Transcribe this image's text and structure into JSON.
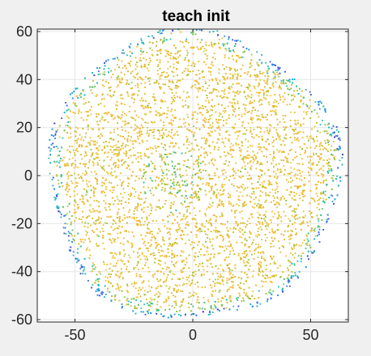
{
  "chart_data": {
    "type": "scatter",
    "title": "teach init",
    "xlabel": "",
    "ylabel": "",
    "xlim": [
      -66,
      66
    ],
    "ylim": [
      -61,
      61
    ],
    "xticks": [
      -50,
      0,
      50
    ],
    "yticks": [
      -60,
      -40,
      -20,
      0,
      20,
      40,
      60
    ],
    "xtick_labels": [
      "-50",
      "0",
      "50"
    ],
    "ytick_labels": [
      "-60",
      "-40",
      "-20",
      "0",
      "20",
      "40",
      "60"
    ],
    "grid": true,
    "legend": "none",
    "colormap": "parula",
    "point_cloud": {
      "shape": "disc",
      "center": [
        0,
        0
      ],
      "radius": 62,
      "approx_point_count": 9000,
      "dominant_color": "#e3b93a",
      "edge_colors": [
        "#3e26a8",
        "#2f7ff5",
        "#1caadf",
        "#2bbfa0",
        "#8fca4a"
      ],
      "interior_colors": [
        "#f3c83a",
        "#e8b83c",
        "#d4bf3e",
        "#bcc748",
        "#9dc950",
        "#5ec77a"
      ]
    }
  },
  "colors": {
    "figure_background": "#f0f0f0",
    "axes_background": "#ffffff",
    "grid": "#e6e6e6",
    "axis": "#262626"
  }
}
